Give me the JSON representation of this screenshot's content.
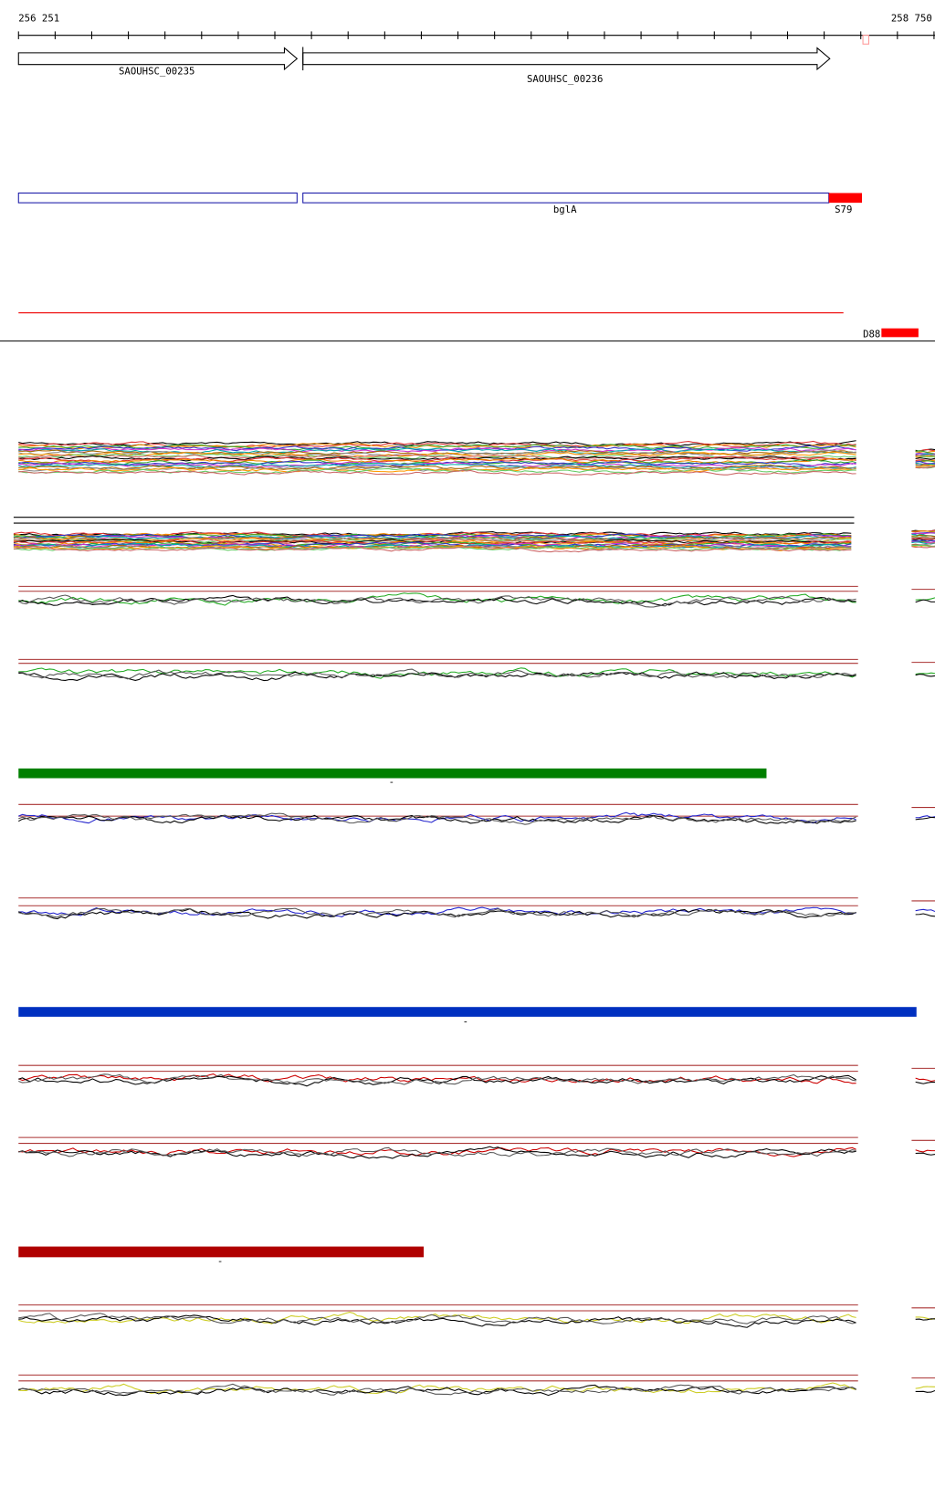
{
  "ruler": {
    "start": "256 251",
    "end": "258 750"
  },
  "genes": [
    {
      "label": "SAOUHSC_00235"
    },
    {
      "label": "SAOUHSC_00236"
    }
  ],
  "features": [
    {
      "label": "bglA"
    },
    {
      "label": "S79"
    },
    {
      "label": "D88"
    }
  ],
  "tracks": [
    {
      "label": "-"
    },
    {
      "label": "-"
    },
    {
      "label": "-"
    }
  ]
}
